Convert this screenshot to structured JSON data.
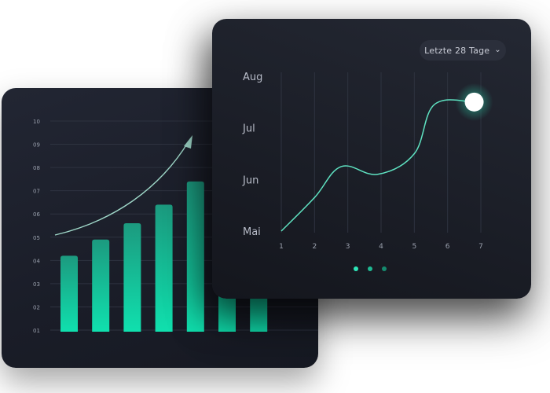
{
  "chart_data": [
    {
      "type": "bar",
      "y_ticks": [
        "01",
        "02",
        "03",
        "04",
        "05",
        "06",
        "07",
        "08",
        "09",
        "10"
      ],
      "values": [
        4.2,
        4.9,
        5.6,
        6.4,
        7.4,
        8.8,
        9.2
      ],
      "ylim": [
        1,
        10
      ],
      "grid": true,
      "trend_arrow": true
    },
    {
      "type": "line",
      "x_ticks": [
        "1",
        "2",
        "3",
        "4",
        "5",
        "6",
        "7"
      ],
      "y_ticks": [
        "Mai",
        "Jun",
        "Jul",
        "Aug"
      ],
      "x": [
        1,
        2,
        2.8,
        3.9,
        5,
        5.6,
        6.8
      ],
      "y": [
        0,
        0.65,
        1.25,
        1.1,
        1.5,
        2.45,
        2.5
      ],
      "xlim": [
        1,
        7
      ],
      "ylim": [
        0,
        3
      ],
      "grid": true,
      "highlight_point": [
        6.8,
        2.5
      ],
      "range_selector": "Letzte 28 Tage"
    }
  ],
  "colors": {
    "accent": "#2ee6b8",
    "bar_top": "#1fa88a",
    "bar_bottom": "#0ee3b0",
    "tick": "#9aa0ad",
    "grid": "#2e3340"
  },
  "pagination": {
    "count": 3,
    "active": 0
  }
}
